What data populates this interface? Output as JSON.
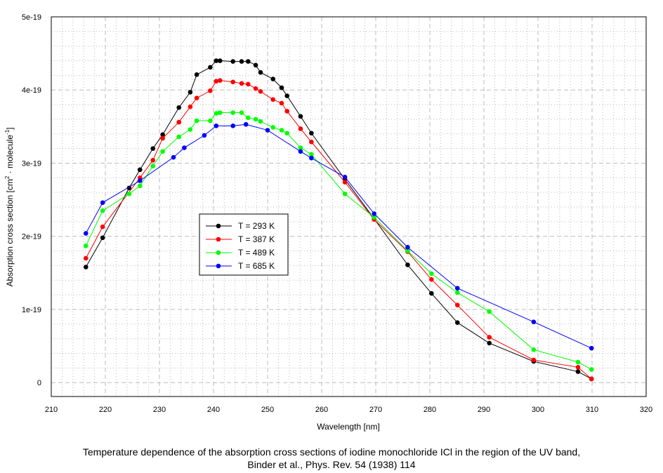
{
  "chart_data": {
    "type": "line",
    "title": "",
    "xlabel": "Wavelength [nm]",
    "ylabel_parts": [
      "Absorption cross section [cm",
      "2",
      " · molecule",
      "-1",
      "]"
    ],
    "xlim": [
      210,
      320
    ],
    "ylim": [
      -0.19,
      5
    ],
    "y_unit": "1e-19",
    "xticks": [
      "210",
      "220",
      "230",
      "240",
      "250",
      "260",
      "270",
      "280",
      "290",
      "300",
      "310",
      "320"
    ],
    "yticks": [
      {
        "v": 0,
        "label": "0"
      },
      {
        "v": 1,
        "label": "1e-19"
      },
      {
        "v": 2,
        "label": "2e-19"
      },
      {
        "v": 3,
        "label": "3e-19"
      },
      {
        "v": 4,
        "label": "4e-19"
      },
      {
        "v": 5,
        "label": "5e-19"
      }
    ],
    "grid": true,
    "legend_position": "center-left",
    "series": [
      {
        "name": "T = 293 K",
        "color": "#000000",
        "x": [
          216.4,
          219.5,
          224.4,
          226.4,
          228.8,
          230.6,
          233.6,
          235.7,
          236.9,
          239.4,
          240.5,
          241.2,
          243.6,
          245.2,
          246.4,
          247.8,
          248.7,
          251.0,
          252.6,
          253.6,
          256.1,
          258.1,
          264.3,
          269.7,
          275.9,
          280.3,
          285.1,
          291.0,
          299.2,
          307.4,
          309.9
        ],
        "y": [
          1.58,
          1.98,
          2.66,
          2.91,
          3.2,
          3.39,
          3.76,
          3.97,
          4.21,
          4.31,
          4.4,
          4.4,
          4.39,
          4.39,
          4.39,
          4.34,
          4.24,
          4.15,
          4.03,
          3.92,
          3.64,
          3.41,
          2.78,
          2.24,
          1.61,
          1.22,
          0.82,
          0.54,
          0.29,
          0.15,
          0.05
        ]
      },
      {
        "name": "T = 387 K",
        "color": "#ff0000",
        "x": [
          216.4,
          219.5,
          226.4,
          228.8,
          230.6,
          233.6,
          235.7,
          236.9,
          239.4,
          240.5,
          241.2,
          243.6,
          245.2,
          246.4,
          247.8,
          248.7,
          251.0,
          252.6,
          253.6,
          256.1,
          258.1,
          264.3,
          269.7,
          275.9,
          280.3,
          285.1,
          291.0,
          299.2,
          307.4,
          309.9
        ],
        "y": [
          1.7,
          2.13,
          2.8,
          3.04,
          3.34,
          3.56,
          3.77,
          3.89,
          3.99,
          4.12,
          4.13,
          4.11,
          4.09,
          4.08,
          4.02,
          3.98,
          3.87,
          3.82,
          3.71,
          3.47,
          3.29,
          2.74,
          2.23,
          1.79,
          1.41,
          1.06,
          0.62,
          0.31,
          0.21,
          0.05
        ]
      },
      {
        "name": "T = 489 K",
        "color": "#00ff00",
        "x": [
          216.4,
          219.5,
          224.4,
          226.4,
          228.8,
          230.6,
          233.6,
          235.7,
          236.9,
          239.4,
          240.5,
          241.2,
          243.6,
          245.2,
          246.4,
          247.8,
          248.7,
          251.0,
          252.6,
          253.6,
          256.1,
          258.1,
          264.3,
          269.7,
          275.9,
          280.3,
          285.1,
          291.0,
          299.2,
          307.4,
          309.9
        ],
        "y": [
          1.87,
          2.35,
          2.58,
          2.69,
          2.96,
          3.16,
          3.36,
          3.46,
          3.58,
          3.58,
          3.68,
          3.69,
          3.69,
          3.69,
          3.62,
          3.6,
          3.57,
          3.49,
          3.45,
          3.41,
          3.21,
          3.12,
          2.58,
          2.26,
          1.8,
          1.49,
          1.23,
          0.97,
          0.45,
          0.28,
          0.18
        ]
      },
      {
        "name": "T = 685 K",
        "color": "#0000ff",
        "x": [
          216.4,
          219.5,
          226.4,
          232.6,
          234.6,
          238.3,
          240.5,
          243.6,
          246.0,
          250.0,
          256.1,
          258.1,
          264.3,
          269.7,
          275.9,
          285.1,
          299.2,
          309.9
        ],
        "y": [
          2.04,
          2.46,
          2.76,
          3.08,
          3.21,
          3.38,
          3.51,
          3.51,
          3.53,
          3.45,
          3.16,
          3.07,
          2.81,
          2.31,
          1.85,
          1.29,
          0.83,
          0.47
        ]
      }
    ]
  },
  "caption": {
    "line1": "Temperature dependence of the absorption cross sections of iodine monochloride ICl in the region of the UV band,",
    "line2": "Binder et al., Phys. Rev. 54 (1938) 114"
  }
}
